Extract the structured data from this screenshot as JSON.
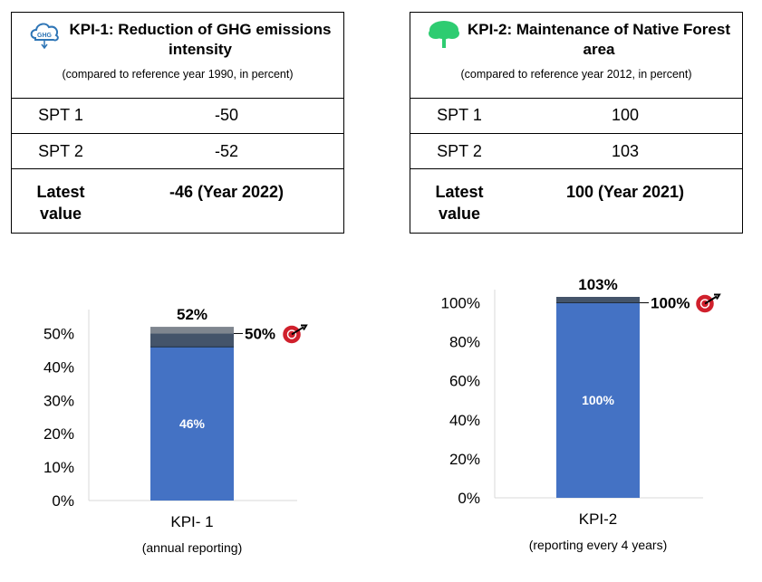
{
  "kpi1": {
    "title": "KPI-1: Reduction of GHG emissions intensity",
    "icon_text": "GHG",
    "subtitle": "(compared to reference year 1990, in percent)",
    "rows": [
      {
        "label": "SPT 1",
        "value": "-50"
      },
      {
        "label": "SPT 2",
        "value": "-52"
      }
    ],
    "latest": {
      "label": "Latest value",
      "value": "-46 (Year 2022)"
    }
  },
  "kpi2": {
    "title": "KPI-2: Maintenance of Native Forest area",
    "subtitle": "(compared to reference year 2012, in percent)",
    "rows": [
      {
        "label": "SPT 1",
        "value": "100"
      },
      {
        "label": "SPT 2",
        "value": "103"
      }
    ],
    "latest": {
      "label": "Latest value",
      "value": "100 (Year 2021)"
    }
  },
  "colors": {
    "bar_base": "#4472C4",
    "bar_mid": "#44546A",
    "bar_top": "#7F868F",
    "target_icon": "#D0202C",
    "tree_icon": "#2ECC71",
    "cloud_icon": "#2E75B6"
  },
  "chart_data": [
    {
      "type": "bar",
      "stacked": true,
      "categories": [
        "KPI- 1"
      ],
      "subtitle": "(annual reporting)",
      "yticks": [
        "0%",
        "10%",
        "20%",
        "30%",
        "40%",
        "50%"
      ],
      "ylim": [
        0,
        55
      ],
      "series": [
        {
          "values": [
            46
          ],
          "label": "46%"
        },
        {
          "values": [
            4
          ]
        },
        {
          "values": [
            2
          ]
        }
      ],
      "total_label": "52%",
      "target": {
        "value": 50,
        "label": "50%"
      },
      "grid": false
    },
    {
      "type": "bar",
      "stacked": true,
      "categories": [
        "KPI-2"
      ],
      "subtitle": "(reporting every 4 years)",
      "yticks": [
        "0%",
        "20%",
        "40%",
        "60%",
        "80%",
        "100%"
      ],
      "ylim": [
        0,
        103
      ],
      "series": [
        {
          "values": [
            100
          ],
          "label": "100%"
        },
        {
          "values": [
            3
          ]
        }
      ],
      "total_label": "103%",
      "target": {
        "value": 100,
        "label": "100%"
      },
      "grid": false
    }
  ]
}
